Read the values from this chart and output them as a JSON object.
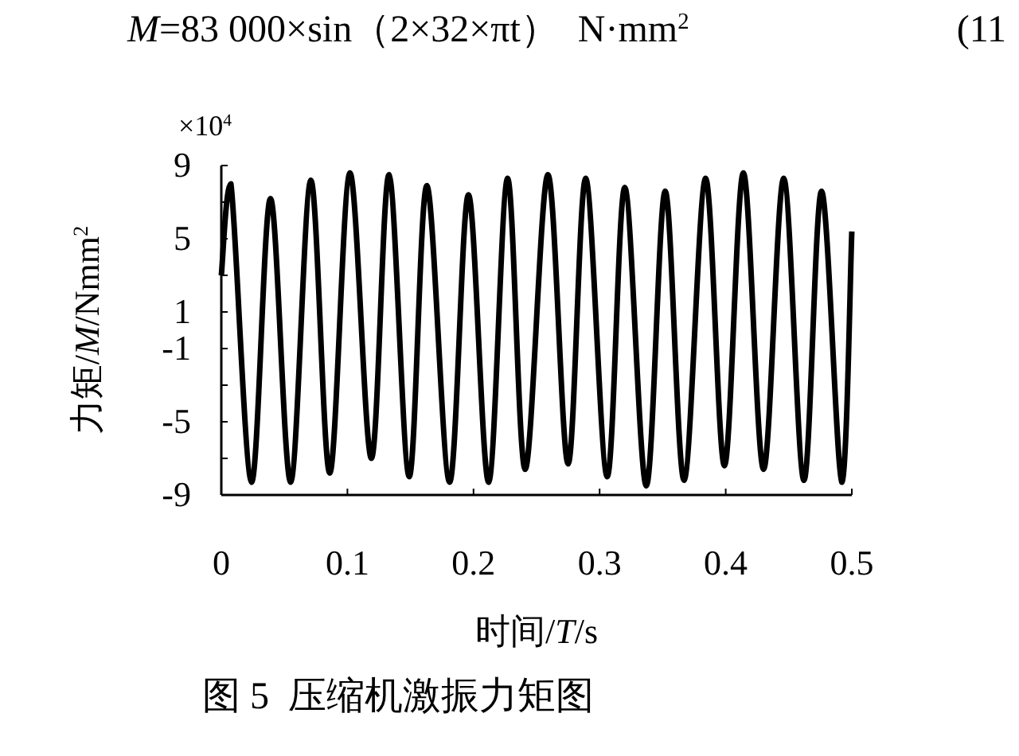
{
  "chart_data": {
    "type": "line",
    "title": "图 5  压缩机激振力矩图",
    "xlabel": "时间/*T*/s",
    "ylabel": "力矩/*M*/Nmm$^{2}$",
    "annotations": [
      "*M*=83 000×sin（2×32×πt）  N·mm$^{2}$",
      "(11",
      "×10$^{4}$"
    ],
    "xlim": [
      0,
      0.5
    ],
    "ylim": [
      -9,
      9
    ],
    "xticks": [
      0,
      0.1,
      0.2,
      0.3,
      0.4,
      0.5
    ],
    "yticks": [
      9,
      {
        "value": 7,
        "label": null
      },
      5,
      {
        "value": 3,
        "label": null
      },
      1,
      -1,
      {
        "value": -3,
        "label": null
      },
      -5,
      {
        "value": -7,
        "label": null
      },
      -9
    ],
    "grid": false,
    "marker": "none",
    "line_style": "solid",
    "series": [
      {
        "color": "#000000",
        "x": [
          0,
          0.0076,
          0.024,
          0.039,
          0.055,
          0.071,
          0.086,
          0.102,
          0.119,
          0.133,
          0.149,
          0.163,
          0.181,
          0.196,
          0.212,
          0.227,
          0.241,
          0.259,
          0.275,
          0.289,
          0.306,
          0.32,
          0.337,
          0.352,
          0.367,
          0.384,
          0.399,
          0.414,
          0.43,
          0.446,
          0.462,
          0.476,
          0.492,
          0.5
        ],
        "values": [
          3,
          8.0,
          -8.3,
          7.2,
          -8.3,
          8.2,
          -7.8,
          8.6,
          -7.0,
          8.5,
          -8.0,
          7.9,
          -8.3,
          7.4,
          -8.3,
          8.3,
          -7.6,
          8.5,
          -7.3,
          8.3,
          -8.0,
          7.8,
          -8.5,
          7.6,
          -8.2,
          8.3,
          -7.4,
          8.6,
          -7.6,
          8.3,
          -8.2,
          7.6,
          -8.3,
          5.4
        ]
      }
    ]
  }
}
